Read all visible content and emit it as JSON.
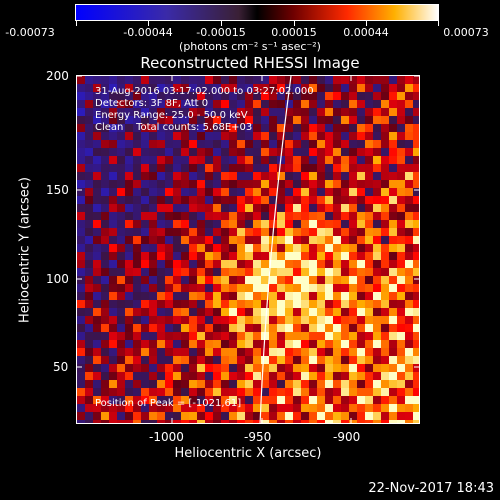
{
  "colorbar": {
    "tick_labels": [
      "-0.00073",
      "-0.00044",
      "-0.00015",
      "0.00015",
      "0.00044",
      "0.00073"
    ],
    "units_label": "(photons cm⁻² s⁻¹ asec⁻²)"
  },
  "title": "Reconstructed RHESSI Image",
  "info": {
    "time_range": "31-Aug-2016 03:17:02.000 to 03:27:02.000",
    "detectors": "Detectors: 3F 8F, Att 0",
    "energy": "Energy Range: 25.0 - 50.0 keV",
    "clean": "Clean    Total counts: 5.68E+03"
  },
  "peak_label": "Position of Peak = [-1021,61]",
  "x_axis": {
    "label": "Heliocentric X (arcsec)",
    "ticks": [
      "-1000",
      "-950",
      "-900"
    ],
    "range": [
      -1046,
      -851
    ]
  },
  "y_axis": {
    "label": "Heliocentric Y (arcsec)",
    "ticks": [
      "50",
      "100",
      "150",
      "200"
    ],
    "range": [
      0,
      200
    ]
  },
  "timestamp": "22-Nov-2017 18:43",
  "colors": {
    "limb": "#ffffff",
    "frame": "#ffffff"
  }
}
